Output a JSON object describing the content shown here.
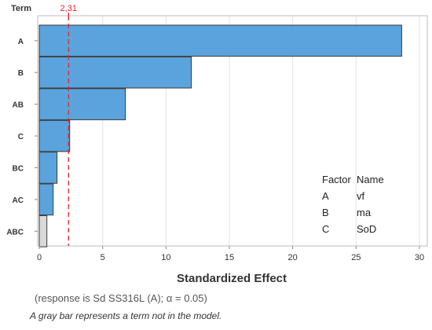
{
  "chart_data": {
    "type": "bar",
    "orientation": "horizontal",
    "y_axis_label": "Term",
    "xlabel": "Standardized Effect",
    "subtitle": "(response is Sd SS316L (A); α = 0.05)",
    "footnote": "A gray bar represents a term not in the model.",
    "categories": [
      "A",
      "B",
      "AB",
      "C",
      "BC",
      "AC",
      "ABC"
    ],
    "values": [
      28.6,
      12.0,
      6.8,
      2.4,
      1.4,
      1.1,
      0.6
    ],
    "in_model": [
      true,
      true,
      true,
      true,
      true,
      true,
      false
    ],
    "xlim": [
      0,
      30
    ],
    "xticks": [
      0,
      5,
      10,
      15,
      20,
      25,
      30
    ],
    "reference_line": {
      "value": 2.31,
      "label": "2,31",
      "color": "#e0252a"
    },
    "grid": true,
    "colors": {
      "bar": "#5ba3dc",
      "bar_excluded": "#d9d9d9",
      "edge": "#3a3a3a"
    }
  },
  "legend": {
    "headers": [
      "Factor",
      "Name"
    ],
    "rows": [
      {
        "factor": "A",
        "name": "vf"
      },
      {
        "factor": "B",
        "name": "ma"
      },
      {
        "factor": "C",
        "name": "SoD"
      }
    ]
  }
}
